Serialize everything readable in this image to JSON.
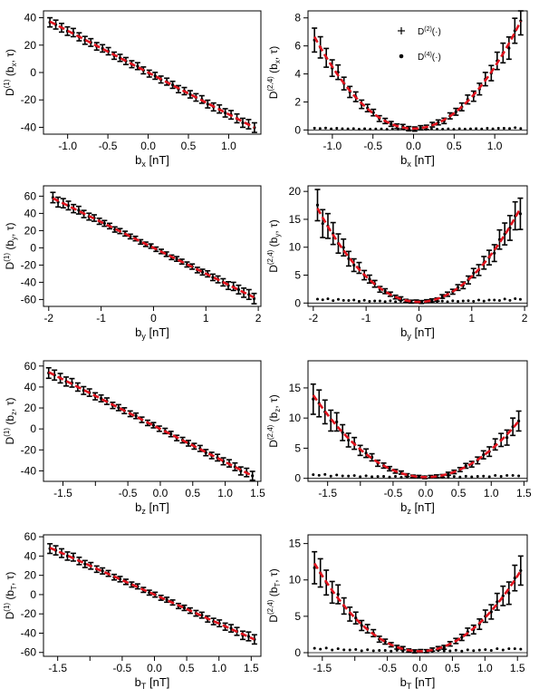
{
  "colors": {
    "points": "#000000",
    "fit": "#e0141e",
    "frame": "#000000"
  },
  "chart_data": [
    {
      "id": "d1-bx",
      "type": "scatter",
      "xlabel_main": "b",
      "xlabel_sub": "x",
      "xlabel_unit": " [nT]",
      "ylabel_main": "D",
      "ylabel_sup": "(1)",
      "ylabel_args": " (b",
      "ylabel_sub": "x",
      "ylabel_tail": ", τ)",
      "xlim": [
        -1.3,
        1.4
      ],
      "ylim": [
        -45,
        45
      ],
      "xticks": [
        -1.0,
        -0.5,
        0.0,
        0.5,
        1.0
      ],
      "xticklabels": [
        "-1.0",
        "-0.5",
        "0.0",
        "0.5",
        "1.0"
      ],
      "yticks": [
        -40,
        -20,
        0,
        20,
        40
      ],
      "yticklabels": [
        "-40",
        "-20",
        "0",
        "20",
        "40"
      ],
      "series": [
        {
          "kind": "drift",
          "xmin": -1.22,
          "xmax": 1.32,
          "n": 36,
          "slope": -30.5,
          "err0": 2.5,
          "err1": 3.5
        }
      ],
      "fit": {
        "slope": -30.5,
        "xmin": -1.22,
        "xmax": 1.32
      }
    },
    {
      "id": "d24-bx",
      "type": "scatter",
      "xlabel_main": "b",
      "xlabel_sub": "x",
      "xlabel_unit": " [nT]",
      "ylabel_main": "D",
      "ylabel_sup": "(2,4)",
      "ylabel_args": " (b",
      "ylabel_sub": "x",
      "ylabel_tail": ", τ)",
      "xlim": [
        -1.3,
        1.4
      ],
      "ylim": [
        -0.3,
        8.5
      ],
      "xticks": [
        -1.0,
        -0.5,
        0.0,
        0.5,
        1.0
      ],
      "xticklabels": [
        "-1.0",
        "-0.5",
        "0.0",
        "0.5",
        "1.0"
      ],
      "yticks": [
        0,
        2,
        4,
        6,
        8
      ],
      "yticklabels": [
        "0",
        "2",
        "4",
        "6",
        "8"
      ],
      "series": [
        {
          "name": "D(2)(·)",
          "marker": "plus",
          "kind": "diffusion",
          "xmin": -1.22,
          "xmax": 1.32,
          "n": 36,
          "a": 4.4,
          "c": 0.1,
          "err0": 0.15,
          "err1": 1.0
        },
        {
          "name": "D(4)(·)",
          "marker": "dot",
          "kind": "fourth",
          "xmin": -1.22,
          "xmax": 1.32,
          "n": 38,
          "level": 0.07
        }
      ],
      "fit": {
        "a": 4.4,
        "c": 0.1,
        "xmin": -1.22,
        "xmax": 1.32
      },
      "legend": {
        "placement": "top-center",
        "entries": [
          {
            "marker": "plus",
            "main": "D",
            "sup": "(2)",
            "tail": "(·)"
          },
          {
            "marker": "dot",
            "main": "D",
            "sup": "(4)",
            "tail": "(·)"
          }
        ]
      }
    },
    {
      "id": "d1-by",
      "type": "scatter",
      "xlabel_main": "b",
      "xlabel_sub": "y",
      "xlabel_unit": " [nT]",
      "ylabel_main": "D",
      "ylabel_sup": "(1)",
      "ylabel_args": " (b",
      "ylabel_sub": "y",
      "ylabel_tail": ", τ)",
      "xlim": [
        -2.1,
        2.05
      ],
      "ylim": [
        -68,
        72
      ],
      "xticks": [
        -2,
        -1,
        0,
        1,
        2
      ],
      "xticklabels": [
        "-2",
        "-1",
        "0",
        "1",
        "2"
      ],
      "yticks": [
        -60,
        -40,
        -20,
        0,
        20,
        40,
        60
      ],
      "yticklabels": [
        "-60",
        "-40",
        "-20",
        "0",
        "20",
        "40",
        "60"
      ],
      "series": [
        {
          "kind": "drift",
          "xmin": -1.92,
          "xmax": 1.92,
          "n": 40,
          "slope": -30.0,
          "err0": 2.5,
          "err1": 6.0
        }
      ],
      "fit": {
        "slope": -30.0,
        "xmin": -1.92,
        "xmax": 1.92
      }
    },
    {
      "id": "d24-by",
      "type": "scatter",
      "xlabel_main": "b",
      "xlabel_sub": "y",
      "xlabel_unit": " [nT]",
      "ylabel_main": "D",
      "ylabel_sup": "(2,4)",
      "ylabel_args": " (b",
      "ylabel_sub": "y",
      "ylabel_tail": ", τ)",
      "xlim": [
        -2.1,
        2.05
      ],
      "ylim": [
        -0.6,
        21
      ],
      "xticks": [
        -2,
        -1,
        0,
        1,
        2
      ],
      "xticklabels": [
        "-2",
        "-1",
        "0",
        "1",
        "2"
      ],
      "yticks": [
        0,
        5,
        10,
        15,
        20
      ],
      "yticklabels": [
        "0",
        "5",
        "10",
        "15",
        "20"
      ],
      "series": [
        {
          "marker": "plus",
          "kind": "diffusion",
          "xmin": -1.92,
          "xmax": 1.92,
          "n": 40,
          "a": 4.55,
          "c": 0.2,
          "err0": 0.25,
          "err1": 2.8
        },
        {
          "marker": "dot",
          "kind": "fourth",
          "xmin": -1.92,
          "xmax": 1.92,
          "n": 40,
          "level": 0.35
        }
      ],
      "fit": {
        "a": 4.55,
        "c": 0.2,
        "xmin": -1.92,
        "xmax": 1.92
      }
    },
    {
      "id": "d1-bz",
      "type": "scatter",
      "xlabel_main": "b",
      "xlabel_sub": "z",
      "xlabel_unit": " [nT]",
      "ylabel_main": "D",
      "ylabel_sup": "(1)",
      "ylabel_args": " (b",
      "ylabel_sub": "z",
      "ylabel_tail": ", τ)",
      "xlim": [
        -1.8,
        1.55
      ],
      "ylim": [
        -50,
        65
      ],
      "xticks": [
        -1.5,
        -1.0,
        -0.5,
        0.0,
        0.5,
        1.0,
        1.5
      ],
      "xticklabels": [
        "-1.5",
        "",
        "-0.5",
        "0.0",
        "0.5",
        "1.0",
        "1.5"
      ],
      "yticks": [
        -40,
        -20,
        0,
        20,
        40,
        60
      ],
      "yticklabels": [
        "-40",
        "-20",
        "0",
        "20",
        "40",
        "60"
      ],
      "series": [
        {
          "kind": "drift",
          "xmin": -1.72,
          "xmax": 1.42,
          "n": 36,
          "slope": -31.5,
          "err0": 2.5,
          "err1": 5.0
        }
      ],
      "fit": {
        "slope": -31.5,
        "xmin": -1.72,
        "xmax": 1.42
      }
    },
    {
      "id": "d24-bz",
      "type": "scatter",
      "xlabel_main": "b",
      "xlabel_sub": "z",
      "xlabel_unit": " [nT]",
      "ylabel_main": "D",
      "ylabel_sup": "(2,4)",
      "ylabel_args": " (b",
      "ylabel_sub": "z",
      "ylabel_tail": ", τ)",
      "xlim": [
        -1.8,
        1.55
      ],
      "ylim": [
        -0.5,
        19.5
      ],
      "xticks": [
        -1.5,
        -1.0,
        -0.5,
        0.0,
        0.5,
        1.0,
        1.5
      ],
      "xticklabels": [
        "-1.5",
        "",
        "-0.5",
        "0.0",
        "0.5",
        "1.0",
        "1.5"
      ],
      "yticks": [
        0,
        5,
        10,
        15
      ],
      "yticklabels": [
        "0",
        "5",
        "10",
        "15"
      ],
      "series": [
        {
          "marker": "plus",
          "kind": "diffusion",
          "xmin": -1.72,
          "xmax": 1.42,
          "n": 36,
          "a": 4.6,
          "c": 0.2,
          "err0": 0.2,
          "err1": 2.5
        },
        {
          "marker": "dot",
          "kind": "fourth",
          "xmin": -1.72,
          "xmax": 1.42,
          "n": 36,
          "level": 0.3
        }
      ],
      "fit": {
        "a": 4.6,
        "c": 0.2,
        "xmin": -1.72,
        "xmax": 1.42
      }
    },
    {
      "id": "d1-bt",
      "type": "scatter",
      "xlabel_main": "b",
      "xlabel_sub": "T",
      "xlabel_unit": " [nT]",
      "ylabel_main": "D",
      "ylabel_sup": "(1)",
      "ylabel_args": " (b",
      "ylabel_sub": "T",
      "ylabel_tail": ", τ)",
      "xlim": [
        -1.72,
        1.65
      ],
      "ylim": [
        -64,
        62
      ],
      "xticks": [
        -1.5,
        -1.0,
        -0.5,
        0.0,
        0.5,
        1.0,
        1.5
      ],
      "xticklabels": [
        "-1.5",
        "",
        "-0.5",
        "0.0",
        "0.5",
        "1.0",
        "1.5"
      ],
      "yticks": [
        -60,
        -40,
        -20,
        0,
        20,
        40,
        60
      ],
      "yticklabels": [
        "-60",
        "-40",
        "-20",
        "0",
        "20",
        "40",
        "60"
      ],
      "series": [
        {
          "kind": "drift",
          "xmin": -1.62,
          "xmax": 1.55,
          "n": 36,
          "slope": -30.0,
          "err0": 2.5,
          "err1": 5.0
        }
      ],
      "fit": {
        "slope": -30.0,
        "xmin": -1.62,
        "xmax": 1.55
      }
    },
    {
      "id": "d24-bt",
      "type": "scatter",
      "xlabel_main": "b",
      "xlabel_sub": "T",
      "xlabel_unit": " [nT]",
      "ylabel_main": "D",
      "ylabel_sup": "(2,4)",
      "ylabel_args": " (b",
      "ylabel_sub": "T",
      "ylabel_tail": ", τ)",
      "xlim": [
        -1.72,
        1.65
      ],
      "ylim": [
        -0.5,
        16.2
      ],
      "xticks": [
        -1.5,
        -1.0,
        -0.5,
        0.0,
        0.5,
        1.0,
        1.5
      ],
      "xticklabels": [
        "-1.5",
        "",
        "-0.5",
        "0.0",
        "0.5",
        "1.0",
        "1.5"
      ],
      "yticks": [
        0,
        5,
        10,
        15
      ],
      "yticklabels": [
        "0",
        "5",
        "10",
        "15"
      ],
      "series": [
        {
          "marker": "plus",
          "kind": "diffusion",
          "xmin": -1.62,
          "xmax": 1.55,
          "n": 36,
          "a": 4.6,
          "c": 0.2,
          "err0": 0.2,
          "err1": 2.2
        },
        {
          "marker": "dot",
          "kind": "fourth",
          "xmin": -1.62,
          "xmax": 1.55,
          "n": 36,
          "level": 0.3
        }
      ],
      "fit": {
        "a": 4.6,
        "c": 0.2,
        "xmin": -1.62,
        "xmax": 1.55
      }
    }
  ]
}
